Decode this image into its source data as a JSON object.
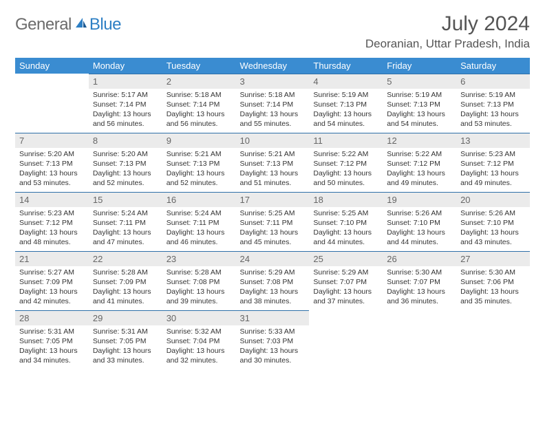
{
  "logo": {
    "word1": "General",
    "word2": "Blue"
  },
  "title": "July 2024",
  "location": "Deoranian, Uttar Pradesh, India",
  "colors": {
    "header_bg": "#3a8cd1",
    "border": "#2d6fa8",
    "daynum_bg": "#ebebeb",
    "logo_gray": "#6b6b6b",
    "logo_blue": "#2d7fc4"
  },
  "weekdays": [
    "Sunday",
    "Monday",
    "Tuesday",
    "Wednesday",
    "Thursday",
    "Friday",
    "Saturday"
  ],
  "weeks": [
    [
      null,
      {
        "n": "1",
        "rise": "5:17 AM",
        "set": "7:14 PM",
        "dl": "13 hours and 56 minutes."
      },
      {
        "n": "2",
        "rise": "5:18 AM",
        "set": "7:14 PM",
        "dl": "13 hours and 56 minutes."
      },
      {
        "n": "3",
        "rise": "5:18 AM",
        "set": "7:14 PM",
        "dl": "13 hours and 55 minutes."
      },
      {
        "n": "4",
        "rise": "5:19 AM",
        "set": "7:13 PM",
        "dl": "13 hours and 54 minutes."
      },
      {
        "n": "5",
        "rise": "5:19 AM",
        "set": "7:13 PM",
        "dl": "13 hours and 54 minutes."
      },
      {
        "n": "6",
        "rise": "5:19 AM",
        "set": "7:13 PM",
        "dl": "13 hours and 53 minutes."
      }
    ],
    [
      {
        "n": "7",
        "rise": "5:20 AM",
        "set": "7:13 PM",
        "dl": "13 hours and 53 minutes."
      },
      {
        "n": "8",
        "rise": "5:20 AM",
        "set": "7:13 PM",
        "dl": "13 hours and 52 minutes."
      },
      {
        "n": "9",
        "rise": "5:21 AM",
        "set": "7:13 PM",
        "dl": "13 hours and 52 minutes."
      },
      {
        "n": "10",
        "rise": "5:21 AM",
        "set": "7:13 PM",
        "dl": "13 hours and 51 minutes."
      },
      {
        "n": "11",
        "rise": "5:22 AM",
        "set": "7:12 PM",
        "dl": "13 hours and 50 minutes."
      },
      {
        "n": "12",
        "rise": "5:22 AM",
        "set": "7:12 PM",
        "dl": "13 hours and 49 minutes."
      },
      {
        "n": "13",
        "rise": "5:23 AM",
        "set": "7:12 PM",
        "dl": "13 hours and 49 minutes."
      }
    ],
    [
      {
        "n": "14",
        "rise": "5:23 AM",
        "set": "7:12 PM",
        "dl": "13 hours and 48 minutes."
      },
      {
        "n": "15",
        "rise": "5:24 AM",
        "set": "7:11 PM",
        "dl": "13 hours and 47 minutes."
      },
      {
        "n": "16",
        "rise": "5:24 AM",
        "set": "7:11 PM",
        "dl": "13 hours and 46 minutes."
      },
      {
        "n": "17",
        "rise": "5:25 AM",
        "set": "7:11 PM",
        "dl": "13 hours and 45 minutes."
      },
      {
        "n": "18",
        "rise": "5:25 AM",
        "set": "7:10 PM",
        "dl": "13 hours and 44 minutes."
      },
      {
        "n": "19",
        "rise": "5:26 AM",
        "set": "7:10 PM",
        "dl": "13 hours and 44 minutes."
      },
      {
        "n": "20",
        "rise": "5:26 AM",
        "set": "7:10 PM",
        "dl": "13 hours and 43 minutes."
      }
    ],
    [
      {
        "n": "21",
        "rise": "5:27 AM",
        "set": "7:09 PM",
        "dl": "13 hours and 42 minutes."
      },
      {
        "n": "22",
        "rise": "5:28 AM",
        "set": "7:09 PM",
        "dl": "13 hours and 41 minutes."
      },
      {
        "n": "23",
        "rise": "5:28 AM",
        "set": "7:08 PM",
        "dl": "13 hours and 39 minutes."
      },
      {
        "n": "24",
        "rise": "5:29 AM",
        "set": "7:08 PM",
        "dl": "13 hours and 38 minutes."
      },
      {
        "n": "25",
        "rise": "5:29 AM",
        "set": "7:07 PM",
        "dl": "13 hours and 37 minutes."
      },
      {
        "n": "26",
        "rise": "5:30 AM",
        "set": "7:07 PM",
        "dl": "13 hours and 36 minutes."
      },
      {
        "n": "27",
        "rise": "5:30 AM",
        "set": "7:06 PM",
        "dl": "13 hours and 35 minutes."
      }
    ],
    [
      {
        "n": "28",
        "rise": "5:31 AM",
        "set": "7:05 PM",
        "dl": "13 hours and 34 minutes."
      },
      {
        "n": "29",
        "rise": "5:31 AM",
        "set": "7:05 PM",
        "dl": "13 hours and 33 minutes."
      },
      {
        "n": "30",
        "rise": "5:32 AM",
        "set": "7:04 PM",
        "dl": "13 hours and 32 minutes."
      },
      {
        "n": "31",
        "rise": "5:33 AM",
        "set": "7:03 PM",
        "dl": "13 hours and 30 minutes."
      },
      null,
      null,
      null
    ]
  ],
  "labels": {
    "sunrise": "Sunrise:",
    "sunset": "Sunset:",
    "daylight": "Daylight:"
  }
}
